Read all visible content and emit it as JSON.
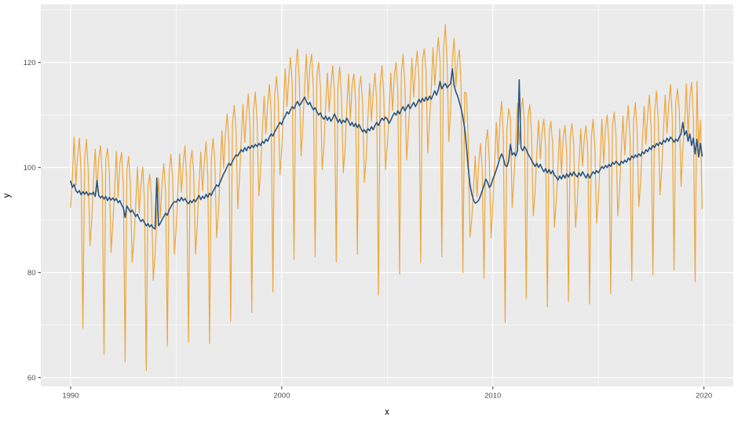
{
  "chart_data": {
    "type": "line",
    "title": "",
    "xlabel": "x",
    "ylabel": "y",
    "grid": true,
    "legend": "none",
    "background": {
      "figure": "#FFFFFF",
      "panel": "#EBEBEB",
      "grid_major": "#FFFFFF",
      "grid_minor": "#FFFFFF",
      "tick_text": "#4D4D4D",
      "tick_mark": "#333333"
    },
    "x_axis": {
      "range": [
        1988.59,
        2021.39
      ],
      "ticks": [
        1990,
        2000,
        2010,
        2020
      ],
      "tick_labels": [
        "1990",
        "2000",
        "2010",
        "2020"
      ],
      "minor_ticks": [
        1995,
        2005,
        2015
      ]
    },
    "y_axis": {
      "range": [
        58.3,
        131.08
      ],
      "ticks": [
        60,
        80,
        100,
        120
      ],
      "tick_labels": [
        "60",
        "80",
        "100",
        "120"
      ],
      "minor_ticks": [
        70,
        90,
        110,
        130
      ]
    },
    "x_start": 1990.0,
    "x_step": 0.083333,
    "series": [
      {
        "id": "series-orange-monthly",
        "color": "#EDA63C",
        "width": 1.2,
        "values": [
          92.4,
          98.2,
          105.8,
          96.6,
          102.2,
          105.6,
          98.8,
          69.4,
          101.9,
          105.4,
          99.7,
          85.1,
          89.9,
          97.3,
          103.5,
          95.4,
          101.7,
          104.2,
          98.6,
          64.5,
          101.5,
          103.7,
          99.3,
          83.8,
          89.2,
          95.7,
          103.1,
          94.3,
          100.7,
          102.9,
          96.3,
          63.0,
          99.7,
          102.1,
          96.5,
          81.9,
          86.3,
          92.7,
          100.1,
          91.3,
          96.7,
          100.1,
          93.5,
          61.3,
          96.3,
          98.7,
          94.1,
          78.5,
          83.3,
          90.5,
          97.9,
          90.4,
          97.1,
          100.7,
          95.3,
          66.0,
          98.9,
          102.5,
          98.1,
          83.5,
          88.4,
          96.0,
          102.6,
          95.3,
          100.7,
          104.1,
          97.5,
          66.7,
          100.7,
          103.3,
          98.9,
          83.5,
          89.1,
          96.7,
          102.9,
          95.5,
          101.1,
          104.9,
          98.3,
          66.5,
          101.7,
          105.5,
          101.1,
          86.7,
          91.4,
          99.2,
          107.0,
          99.8,
          106.4,
          110.2,
          104.8,
          70.7,
          108.2,
          111.8,
          107.4,
          92.2,
          97.8,
          105.4,
          112.0,
          104.8,
          110.2,
          114.0,
          107.6,
          72.4,
          110.8,
          114.4,
          109.0,
          94.6,
          99.2,
          107.0,
          113.6,
          106.4,
          112.0,
          115.8,
          110.4,
          76.3,
          113.8,
          117.4,
          113.0,
          98.6,
          103.2,
          111.2,
          118.8,
          111.6,
          117.2,
          121.0,
          115.6,
          82.5,
          119.0,
          122.6,
          116.8,
          102.2,
          107.8,
          115.4,
          121.6,
          113.0,
          119.4,
          121.6,
          115.0,
          83.0,
          117.6,
          120.0,
          115.4,
          99.6,
          104.2,
          111.8,
          118.0,
          110.6,
          115.8,
          119.4,
          114.2,
          82.0,
          115.6,
          119.2,
          113.4,
          99.0,
          103.6,
          111.4,
          117.8,
          109.0,
          115.6,
          117.8,
          112.4,
          83.5,
          115.2,
          117.4,
          111.8,
          97.2,
          101.6,
          109.4,
          116.0,
          108.8,
          114.2,
          118.0,
          112.6,
          75.7,
          115.8,
          119.4,
          114.0,
          99.6,
          104.2,
          110.4,
          118.0,
          110.8,
          117.4,
          120.0,
          114.8,
          79.7,
          118.0,
          121.6,
          115.8,
          101.4,
          107.0,
          113.2,
          120.8,
          113.4,
          118.6,
          122.2,
          117.0,
          81.9,
          120.2,
          122.6,
          118.4,
          102.8,
          108.6,
          115.0,
          122.8,
          115.6,
          120.8,
          124.8,
          120.4,
          83.0,
          122.6,
          127.2,
          120.2,
          105.0,
          111.0,
          120.8,
          124.6,
          115.4,
          120.6,
          122.4,
          115.2,
          80.0,
          114.4,
          114.0,
          105.0,
          86.8,
          90.0,
          95.8,
          102.2,
          94.4,
          100.8,
          104.6,
          99.6,
          78.9,
          104.8,
          107.2,
          101.2,
          86.6,
          92.8,
          100.6,
          108.6,
          101.6,
          108.8,
          112.6,
          105.8,
          70.5,
          107.2,
          111.2,
          109.4,
          92.4,
          97.8,
          104.2,
          112.2,
          104.4,
          110.8,
          113.2,
          108.0,
          75.0,
          109.6,
          112.0,
          106.4,
          90.8,
          95.2,
          102.8,
          109.0,
          101.6,
          106.8,
          109.2,
          103.8,
          73.5,
          106.6,
          108.8,
          104.4,
          88.6,
          93.2,
          99.6,
          107.4,
          98.8,
          105.6,
          108.0,
          102.8,
          74.5,
          106.0,
          108.4,
          104.2,
          88.6,
          93.2,
          101.0,
          107.4,
          100.2,
          105.6,
          108.0,
          102.8,
          74.0,
          105.6,
          109.2,
          103.8,
          89.4,
          94.0,
          101.6,
          109.2,
          100.8,
          107.4,
          110.0,
          104.6,
          76.0,
          108.0,
          110.6,
          106.2,
          90.8,
          95.4,
          103.2,
          109.8,
          102.4,
          108.0,
          111.8,
          105.4,
          78.5,
          108.8,
          112.4,
          107.0,
          92.6,
          97.2,
          105.0,
          111.6,
          104.4,
          110.0,
          113.8,
          107.4,
          79.5,
          110.8,
          114.6,
          109.2,
          94.8,
          99.4,
          107.2,
          113.8,
          106.6,
          112.0,
          115.8,
          109.4,
          80.5,
          112.4,
          115.0,
          110.8,
          96.4,
          103.6,
          108.2,
          116.0,
          106.0,
          113.4,
          116.2,
          109.6,
          78.2,
          116.4,
          104.0,
          109.0,
          92.2
        ]
      },
      {
        "id": "series-blue-trend",
        "color": "#2A5580",
        "width": 1.6,
        "values": [
          97.4,
          96.2,
          96.8,
          95.6,
          95.2,
          95.6,
          94.8,
          95.4,
          94.9,
          95.4,
          94.7,
          95.1,
          94.9,
          95.3,
          94.5,
          97.5,
          94.7,
          94.2,
          94.6,
          94.0,
          94.5,
          93.7,
          94.3,
          93.8,
          94.2,
          93.7,
          94.1,
          93.3,
          93.7,
          92.9,
          92.3,
          90.5,
          92.7,
          92.1,
          91.5,
          91.9,
          91.3,
          90.7,
          91.1,
          90.3,
          89.7,
          90.1,
          89.5,
          88.9,
          89.3,
          88.7,
          89.1,
          88.5,
          88.3,
          98.0,
          88.9,
          89.4,
          90.1,
          90.7,
          91.3,
          90.9,
          91.9,
          92.5,
          93.1,
          93.5,
          93.4,
          94.0,
          93.6,
          94.3,
          93.7,
          94.1,
          93.5,
          93.1,
          93.7,
          93.3,
          93.9,
          93.5,
          94.1,
          94.7,
          93.9,
          94.5,
          94.1,
          94.9,
          94.3,
          95.1,
          94.7,
          95.5,
          96.1,
          96.7,
          96.4,
          97.2,
          98.0,
          98.8,
          99.4,
          100.2,
          100.8,
          100.4,
          101.2,
          101.8,
          102.4,
          102.2,
          102.8,
          103.4,
          103.0,
          103.8,
          103.2,
          104.0,
          103.6,
          104.2,
          103.8,
          104.4,
          104.0,
          104.6,
          104.2,
          105.0,
          104.6,
          105.4,
          105.0,
          105.8,
          106.4,
          106.0,
          106.8,
          107.4,
          108.0,
          108.6,
          108.2,
          109.2,
          109.8,
          110.6,
          110.2,
          111.0,
          111.6,
          111.2,
          112.0,
          112.6,
          111.8,
          112.2,
          112.8,
          113.4,
          112.6,
          112.0,
          112.4,
          111.6,
          111.0,
          111.4,
          110.6,
          110.0,
          110.4,
          109.6,
          109.2,
          109.8,
          109.0,
          109.6,
          108.8,
          109.4,
          110.2,
          109.4,
          108.6,
          109.2,
          108.4,
          109.0,
          108.6,
          109.4,
          108.8,
          108.0,
          108.6,
          107.8,
          108.4,
          107.6,
          108.2,
          107.4,
          106.8,
          107.2,
          106.6,
          107.4,
          107.0,
          107.8,
          107.2,
          108.0,
          108.6,
          108.0,
          108.8,
          109.4,
          109.0,
          109.6,
          109.2,
          108.4,
          109.0,
          109.8,
          110.4,
          110.0,
          110.8,
          110.2,
          111.0,
          111.6,
          110.8,
          111.4,
          112.0,
          111.2,
          111.8,
          112.4,
          111.6,
          112.2,
          113.0,
          112.4,
          113.2,
          112.6,
          113.4,
          112.8,
          113.6,
          113.0,
          113.8,
          114.6,
          113.8,
          114.8,
          116.4,
          115.0,
          115.6,
          116.0,
          115.2,
          115.6,
          116.0,
          118.8,
          115.6,
          114.4,
          113.6,
          112.4,
          111.2,
          109.6,
          107.4,
          104.0,
          100.0,
          96.8,
          95.0,
          93.8,
          93.2,
          93.4,
          93.8,
          94.6,
          95.6,
          96.6,
          97.8,
          97.2,
          96.2,
          96.6,
          97.8,
          98.6,
          99.6,
          100.6,
          101.8,
          102.6,
          101.8,
          100.4,
          100.2,
          101.2,
          104.4,
          102.4,
          102.8,
          102.2,
          103.2,
          116.7,
          103.8,
          103.2,
          104.0,
          103.4,
          102.6,
          102.0,
          101.4,
          100.8,
          100.2,
          100.8,
          100.0,
          100.6,
          99.8,
          99.2,
          99.8,
          99.0,
          99.6,
          98.8,
          99.4,
          98.6,
          98.2,
          97.6,
          98.4,
          97.8,
          98.6,
          98.0,
          98.8,
          98.2,
          99.0,
          98.4,
          99.2,
          98.6,
          98.2,
          99.0,
          98.4,
          99.2,
          98.6,
          98.0,
          98.8,
          98.0,
          98.6,
          99.2,
          98.8,
          99.4,
          99.0,
          99.6,
          100.2,
          99.8,
          100.4,
          100.0,
          100.6,
          100.2,
          101.0,
          100.6,
          101.2,
          100.8,
          100.4,
          101.2,
          100.8,
          101.4,
          101.0,
          101.8,
          101.4,
          102.2,
          101.8,
          102.4,
          102.0,
          102.6,
          102.2,
          103.0,
          102.6,
          103.4,
          103.0,
          103.8,
          103.4,
          104.2,
          103.8,
          104.6,
          104.2,
          104.8,
          104.4,
          105.2,
          104.8,
          105.6,
          105.0,
          105.8,
          105.4,
          104.8,
          105.4,
          105.0,
          105.8,
          106.4,
          108.6,
          106.2,
          107.0,
          105.0,
          106.4,
          104.2,
          105.6,
          102.6,
          105.4,
          102.0,
          104.6,
          102.2
        ]
      }
    ]
  }
}
